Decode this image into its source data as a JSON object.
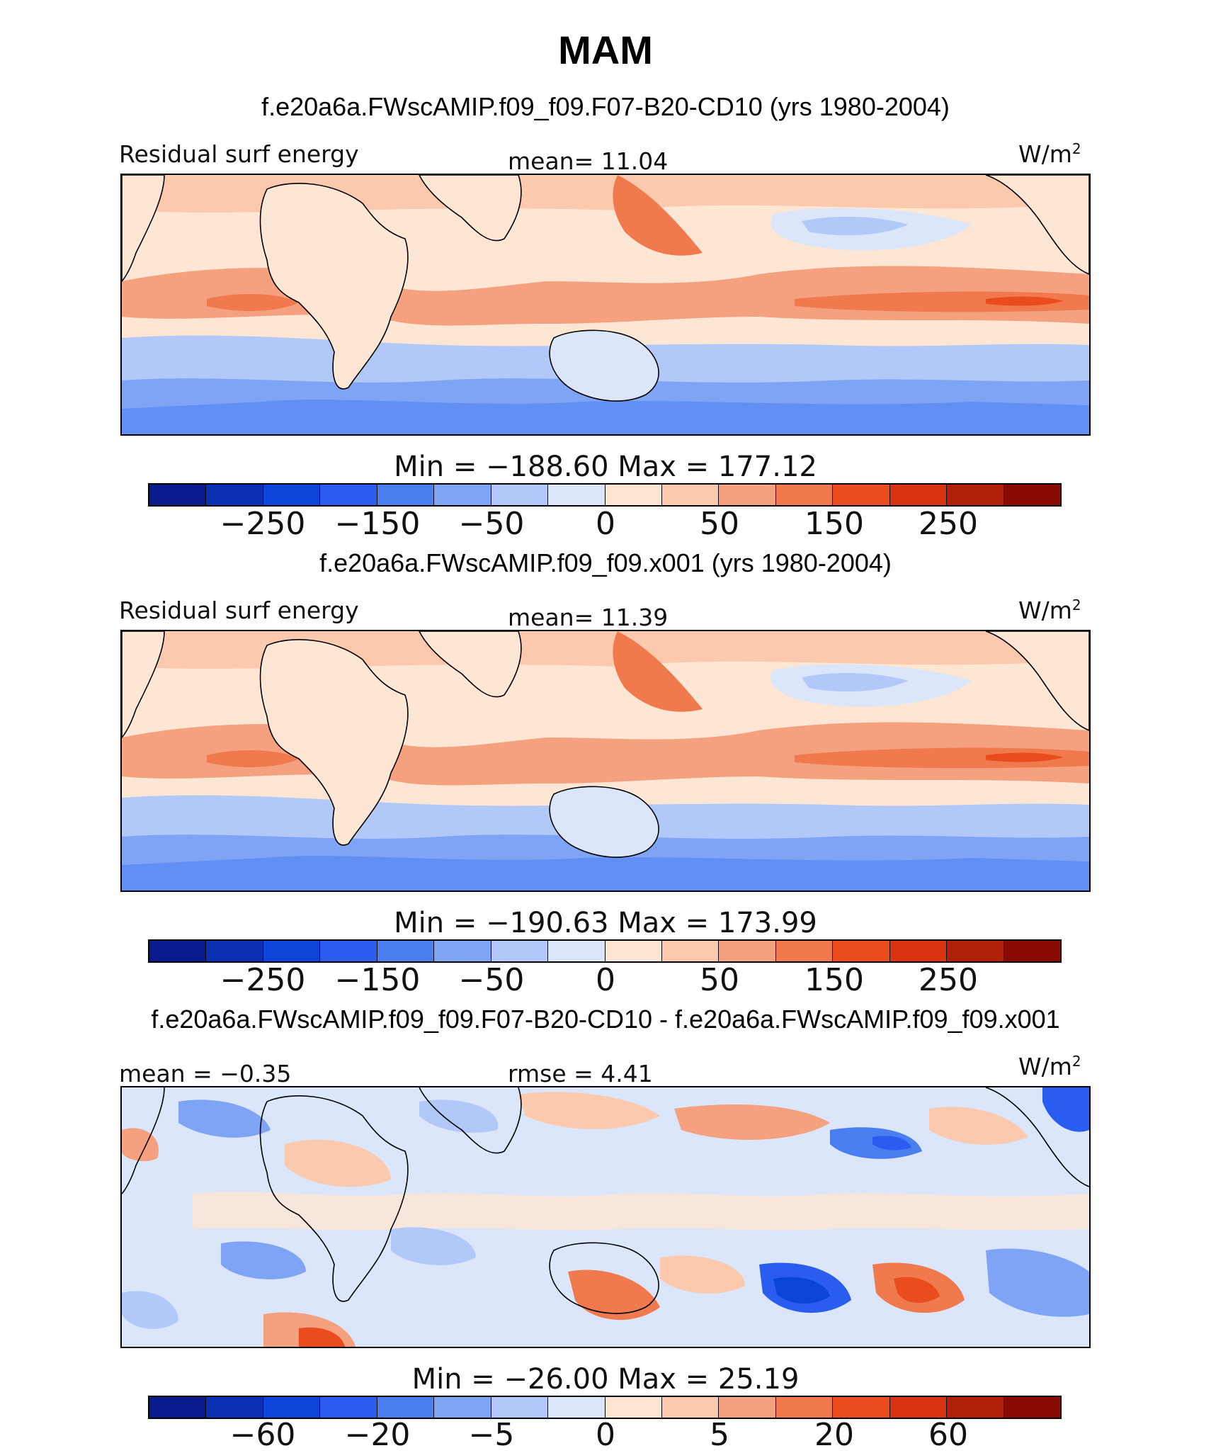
{
  "figure": {
    "title": "MAM"
  },
  "colors": {
    "palette_main": [
      "#0a1a8c",
      "#0a30b4",
      "#0a44d8",
      "#2a5cf0",
      "#4a7ef0",
      "#7fa4f5",
      "#b2c8f8",
      "#dbe6fa",
      "#fde6d4",
      "#fbc9ad",
      "#f5a07e",
      "#f07a4e",
      "#eb4c1e",
      "#d83410",
      "#b22008",
      "#8c0a04"
    ],
    "palette_diff": [
      "#0a1a8c",
      "#0a30b4",
      "#0a44d8",
      "#2a5cf0",
      "#4a7ef0",
      "#7fa4f5",
      "#b2c8f8",
      "#dbe6fa",
      "#fde6d4",
      "#fbc9ad",
      "#f5a07e",
      "#f07a4e",
      "#eb4c1e",
      "#d83410",
      "#b22008",
      "#8c0a04"
    ],
    "land_outline": "#000000"
  },
  "panels": [
    {
      "case": "f.e20a6a.FWscAMIP.f09_f09.F07-B20-CD10 (yrs 1980-2004)",
      "left_label": "Residual surf energy",
      "center_label": "mean=  11.04",
      "units": "W/m",
      "units_sup": "2",
      "minmax": "Min = −188.60 Max = 177.12",
      "ticks": [
        "−250",
        "−150",
        "−50",
        "0",
        "50",
        "150",
        "250"
      ]
    },
    {
      "case": "f.e20a6a.FWscAMIP.f09_f09.x001 (yrs 1980-2004)",
      "left_label": "Residual surf energy",
      "center_label": "mean=  11.39",
      "units": "W/m",
      "units_sup": "2",
      "minmax": "Min = −190.63 Max = 173.99",
      "ticks": [
        "−250",
        "−150",
        "−50",
        "0",
        "50",
        "150",
        "250"
      ]
    },
    {
      "case": "f.e20a6a.FWscAMIP.f09_f09.F07-B20-CD10 - f.e20a6a.FWscAMIP.f09_f09.x001",
      "left_label": "mean =  −0.35",
      "center_label": "rmse =   4.41",
      "units": "W/m",
      "units_sup": "2",
      "minmax": "Min = −26.00 Max =  25.19",
      "ticks": [
        "−60",
        "−20",
        "−5",
        "0",
        "5",
        "20",
        "60"
      ]
    }
  ]
}
